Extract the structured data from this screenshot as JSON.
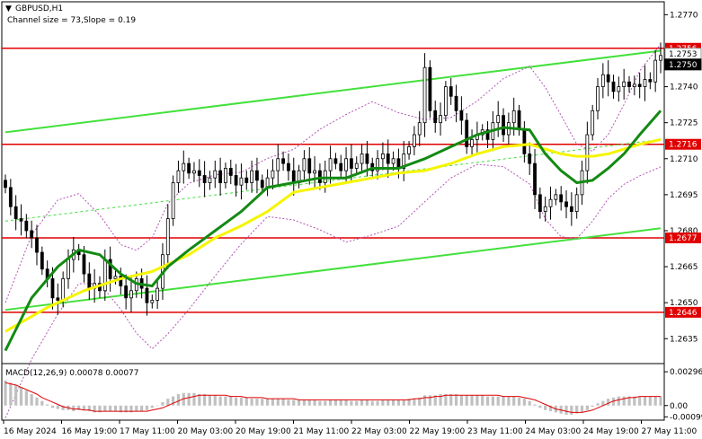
{
  "header": {
    "symbol": "GBPUSD,H1",
    "channel_info": "Channel size = 73,Slope = 0.19"
  },
  "macd_label": "MACD(12,26,9) 0.00078 0.00077",
  "colors": {
    "bull": "#000000",
    "bear": "#000000",
    "level_line": "#e00000",
    "level_tag": "#e00000",
    "channel": "#44e03c",
    "ma_fast": "#138a13",
    "ma_slow": "#f5f500",
    "bollinger": "#b455b4",
    "macd_hist": "#c0c0c0",
    "macd_signal": "#e00000"
  },
  "chart_data": [
    {
      "type": "candlestick",
      "title": "GBPUSD,H1",
      "ylim": [
        1.2625,
        1.2775
      ],
      "y_ticks": [
        "1.2770",
        "1.2755",
        "1.2740",
        "1.2725",
        "1.2710",
        "1.2695",
        "1.2680",
        "1.2665",
        "1.2650",
        "1.2635"
      ],
      "x_ticks": [
        "16 May 2024",
        "16 May 19:00",
        "17 May 11:00",
        "20 May 03:00",
        "20 May 19:00",
        "21 May 11:00",
        "22 May 03:00",
        "22 May 19:00",
        "23 May 11:00",
        "24 May 03:00",
        "24 May 19:00",
        "27 May 11:00"
      ],
      "levels": [
        "1.2756",
        "1.2716",
        "1.2677",
        "1.2646"
      ],
      "price_tags": [
        {
          "value": "1.2753",
          "style": "white"
        },
        {
          "value": "1.2750",
          "style": "black"
        }
      ],
      "channel": {
        "upper": [
          [
            0,
            1.2721
          ],
          [
            125,
            1.2755
          ]
        ],
        "lower": [
          [
            0,
            1.2647
          ],
          [
            125,
            1.2681
          ]
        ],
        "mid": [
          [
            0,
            1.2684
          ],
          [
            125,
            1.2718
          ]
        ]
      },
      "series": [
        {
          "close": [
            1.2698,
            1.269,
            1.2685,
            1.2684,
            1.268,
            1.2677,
            1.2671,
            1.2664,
            1.266,
            1.2652,
            1.2651,
            1.266,
            1.2668,
            1.2672,
            1.267,
            1.2662,
            1.2656,
            1.2658,
            1.2655,
            1.2668,
            1.266,
            1.2661,
            1.2657,
            1.2652,
            1.2655,
            1.266,
            1.2656,
            1.265,
            1.2651,
            1.2656,
            1.267,
            1.2685,
            1.27,
            1.2705,
            1.2708,
            1.2704,
            1.2705,
            1.2703,
            1.27,
            1.2702,
            1.2705,
            1.27,
            1.2706,
            1.2703,
            1.2699,
            1.2702,
            1.27,
            1.2705,
            1.2701,
            1.2698,
            1.2702,
            1.2705,
            1.271,
            1.2708,
            1.2705,
            1.27,
            1.2705,
            1.271,
            1.2704,
            1.2705,
            1.27,
            1.2705,
            1.271,
            1.2708,
            1.2705,
            1.271,
            1.2706,
            1.2708,
            1.2712,
            1.2708,
            1.2705,
            1.271,
            1.2712,
            1.2708,
            1.271,
            1.2706,
            1.2712,
            1.2715,
            1.272,
            1.2725,
            1.2748,
            1.273,
            1.2725,
            1.2728,
            1.274,
            1.2736,
            1.273,
            1.2726,
            1.2715,
            1.2718,
            1.272,
            1.2722,
            1.2718,
            1.2725,
            1.2728,
            1.272,
            1.2725,
            1.273,
            1.2722,
            1.2712,
            1.2708,
            1.2695,
            1.2688,
            1.269,
            1.2693,
            1.2695,
            1.2692,
            1.269,
            1.2688,
            1.2695,
            1.2705,
            1.272,
            1.273,
            1.274,
            1.2745,
            1.2742,
            1.2738,
            1.274,
            1.2742,
            1.274,
            1.2741,
            1.274,
            1.2743,
            1.2742,
            1.2751,
            1.2753
          ]
        },
        {
          "name": "",
          "points": [
            [
              0,
              1.263
            ],
            [
              5,
              1.2652
            ],
            [
              10,
              1.2665
            ],
            [
              14,
              1.2672
            ],
            [
              18,
              1.267
            ],
            [
              22,
              1.2662
            ],
            [
              25,
              1.2658
            ],
            [
              28,
              1.2657
            ],
            [
              31,
              1.2665
            ],
            [
              35,
              1.2672
            ],
            [
              40,
              1.268
            ],
            [
              45,
              1.2688
            ],
            [
              50,
              1.2698
            ],
            [
              55,
              1.27
            ],
            [
              60,
              1.2702
            ],
            [
              65,
              1.2702
            ],
            [
              70,
              1.2706
            ],
            [
              75,
              1.2706
            ],
            [
              80,
              1.271
            ],
            [
              85,
              1.2715
            ],
            [
              90,
              1.272
            ],
            [
              95,
              1.2723
            ],
            [
              100,
              1.2722
            ],
            [
              103,
              1.2712
            ],
            [
              106,
              1.2705
            ],
            [
              109,
              1.27
            ],
            [
              112,
              1.2701
            ],
            [
              115,
              1.2706
            ],
            [
              118,
              1.2712
            ],
            [
              121,
              1.272
            ],
            [
              125,
              1.273
            ]
          ]
        },
        {
          "name": "",
          "points": [
            [
              0,
              1.2638
            ],
            [
              8,
              1.2648
            ],
            [
              15,
              1.2655
            ],
            [
              22,
              1.266
            ],
            [
              28,
              1.2663
            ],
            [
              35,
              1.267
            ],
            [
              40,
              1.2677
            ],
            [
              45,
              1.2682
            ],
            [
              50,
              1.2688
            ],
            [
              55,
              1.2696
            ],
            [
              60,
              1.2698
            ],
            [
              65,
              1.27
            ],
            [
              70,
              1.2702
            ],
            [
              75,
              1.2704
            ],
            [
              80,
              1.2705
            ],
            [
              85,
              1.2708
            ],
            [
              90,
              1.2712
            ],
            [
              95,
              1.2715
            ],
            [
              100,
              1.2716
            ],
            [
              103,
              1.2714
            ],
            [
              106,
              1.2712
            ],
            [
              109,
              1.2711
            ],
            [
              112,
              1.2711
            ],
            [
              115,
              1.2712
            ],
            [
              118,
              1.2714
            ],
            [
              121,
              1.2716
            ],
            [
              125,
              1.2718
            ]
          ]
        }
      ]
    },
    {
      "type": "bar",
      "title": "MACD(12,26,9) 0.00078 0.00077",
      "ylim": [
        -0.0012,
        0.0036
      ],
      "y_ticks": [
        "0.00296",
        "0.00",
        "-0.00099"
      ],
      "values": [
        0.0022,
        0.002,
        0.0018,
        0.0016,
        0.0013,
        0.001,
        0.0007,
        0.0004,
        0.0001,
        -0.0002,
        -0.0003,
        -0.0004,
        -0.0004,
        -0.0005,
        -0.0004,
        -0.0004,
        -0.0005,
        -0.0006,
        -0.0006,
        -0.0005,
        -0.0005,
        -0.0005,
        -0.0006,
        -0.0006,
        -0.0006,
        -0.0005,
        -0.0005,
        -0.0004,
        -0.0002,
        0.0,
        0.0003,
        0.0006,
        0.0008,
        0.001,
        0.0011,
        0.0011,
        0.0011,
        0.001,
        0.001,
        0.0009,
        0.0009,
        0.0008,
        0.0008,
        0.0008,
        0.0007,
        0.0007,
        0.0007,
        0.0006,
        0.0006,
        0.0006,
        0.0006,
        0.0006,
        0.0006,
        0.0006,
        0.0005,
        0.0005,
        0.0005,
        0.0005,
        0.0005,
        0.0005,
        0.0004,
        0.0004,
        0.0005,
        0.0005,
        0.0005,
        0.0005,
        0.0004,
        0.0004,
        0.0005,
        0.0005,
        0.0004,
        0.0004,
        0.0005,
        0.0005,
        0.0005,
        0.0005,
        0.0005,
        0.0006,
        0.0006,
        0.0007,
        0.0009,
        0.0009,
        0.0009,
        0.001,
        0.001,
        0.001,
        0.001,
        0.0009,
        0.0009,
        0.0009,
        0.0009,
        0.0009,
        0.0008,
        0.0008,
        0.0008,
        0.0008,
        0.0008,
        0.0008,
        0.0007,
        0.0006,
        0.0004,
        0.0001,
        -0.0002,
        -0.0004,
        -0.0005,
        -0.0006,
        -0.0007,
        -0.0008,
        -0.0008,
        -0.0007,
        -0.0006,
        -0.0004,
        -0.0001,
        0.0002,
        0.0004,
        0.0006,
        0.0007,
        0.0008,
        0.0008,
        0.0008,
        0.0008,
        0.0008,
        0.0008,
        0.0008,
        0.0008,
        0.0008
      ],
      "signal": [
        0.002,
        0.0019,
        0.0018,
        0.0016,
        0.0014,
        0.0012,
        0.001,
        0.0007,
        0.0005,
        0.0003,
        0.0001,
        -0.0001,
        -0.0002,
        -0.0003,
        -0.0003,
        -0.0004,
        -0.0004,
        -0.0005,
        -0.0005,
        -0.0005,
        -0.0005,
        -0.0005,
        -0.0005,
        -0.0005,
        -0.0005,
        -0.0005,
        -0.0005,
        -0.0005,
        -0.0004,
        -0.0003,
        -0.0002,
        0.0,
        0.0002,
        0.0004,
        0.0006,
        0.0007,
        0.0008,
        0.0009,
        0.0009,
        0.0009,
        0.0009,
        0.0009,
        0.0009,
        0.0008,
        0.0008,
        0.0008,
        0.0007,
        0.0007,
        0.0007,
        0.0007,
        0.0006,
        0.0006,
        0.0006,
        0.0006,
        0.0006,
        0.0006,
        0.0005,
        0.0005,
        0.0005,
        0.0005,
        0.0005,
        0.0005,
        0.0005,
        0.0005,
        0.0005,
        0.0005,
        0.0005,
        0.0005,
        0.0005,
        0.0005,
        0.0005,
        0.0005,
        0.0005,
        0.0005,
        0.0005,
        0.0005,
        0.0005,
        0.0005,
        0.0006,
        0.0006,
        0.0007,
        0.0007,
        0.0008,
        0.0008,
        0.0009,
        0.0009,
        0.0009,
        0.0009,
        0.0009,
        0.0009,
        0.0009,
        0.0009,
        0.0009,
        0.0009,
        0.0009,
        0.0008,
        0.0008,
        0.0008,
        0.0008,
        0.0007,
        0.0006,
        0.0005,
        0.0003,
        0.0001,
        -0.0001,
        -0.0003,
        -0.0004,
        -0.0005,
        -0.0006,
        -0.0006,
        -0.0006,
        -0.0005,
        -0.0004,
        -0.0002,
        0.0,
        0.0002,
        0.0004,
        0.0005,
        0.0006,
        0.0007,
        0.0007,
        0.0008,
        0.0008,
        0.0008,
        0.0008,
        0.0008
      ]
    }
  ]
}
